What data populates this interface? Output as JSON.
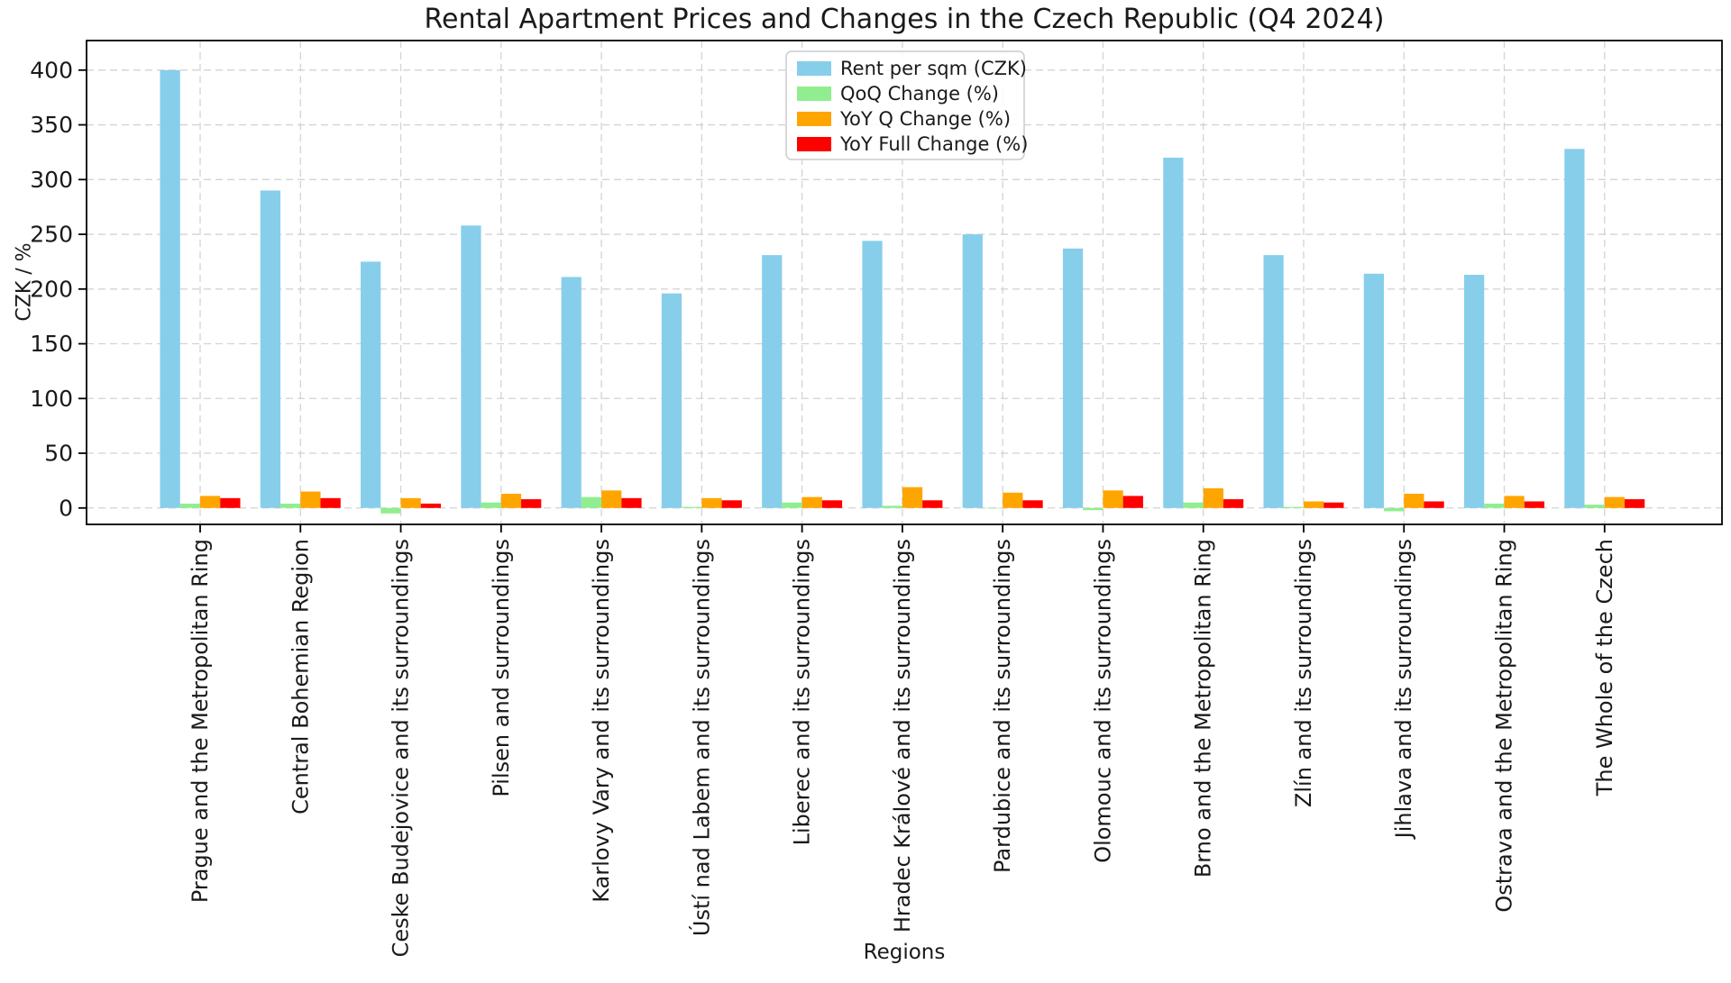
{
  "title": "Rental Apartment Prices and Changes in the Czech Republic (Q4 2024)",
  "chart_data": {
    "type": "bar",
    "title": "Rental Apartment Prices and Changes in the Czech Republic (Q4 2024)",
    "xlabel": "Regions",
    "ylabel": "CZK / %",
    "ylim": [
      -15,
      427
    ],
    "yticks": [
      0,
      50,
      100,
      150,
      200,
      250,
      300,
      350,
      400
    ],
    "grid": "dashed-both-axes",
    "legend_position": "upper center",
    "background": "#ffffff",
    "categories": [
      "Prague and the Metropolitan Ring",
      "Central Bohemian Region",
      "Ceske Budejovice and its surroundings",
      "Pilsen and surroundings",
      "Karlovy Vary and its surroundings",
      "Ústí nad Labem and its surroundings",
      "Liberec and its surroundings",
      "Hradec Králové and its surroundings",
      "Pardubice and its surroundings",
      "Olomouc and its surroundings",
      "Brno and the Metropolitan Ring",
      "Zlín and its surroundings",
      "Jihlava and its surroundings",
      "Ostrava and the Metropolitan Ring",
      "The Whole of the Czech"
    ],
    "series": [
      {
        "name": "Rent per sqm (CZK)",
        "color": "#87CEEB",
        "values": [
          400,
          290,
          225,
          258,
          211,
          196,
          231,
          244,
          250,
          237,
          320,
          231,
          214,
          213,
          328
        ]
      },
      {
        "name": "QoQ Change (%)",
        "color": "#90EE90",
        "values": [
          4,
          4,
          -5,
          5,
          10,
          1,
          5,
          2,
          0,
          -2,
          5,
          1,
          -3,
          4,
          3
        ]
      },
      {
        "name": "YoY Q Change (%)",
        "color": "#FFA500",
        "values": [
          11,
          15,
          9,
          13,
          16,
          9,
          10,
          19,
          14,
          16,
          18,
          6,
          13,
          11,
          10
        ]
      },
      {
        "name": "YoY Full Change (%)",
        "color": "#FF0000",
        "values": [
          9,
          9,
          4,
          8,
          9,
          7,
          7,
          7,
          7,
          11,
          8,
          5,
          6,
          6,
          8
        ]
      }
    ]
  }
}
